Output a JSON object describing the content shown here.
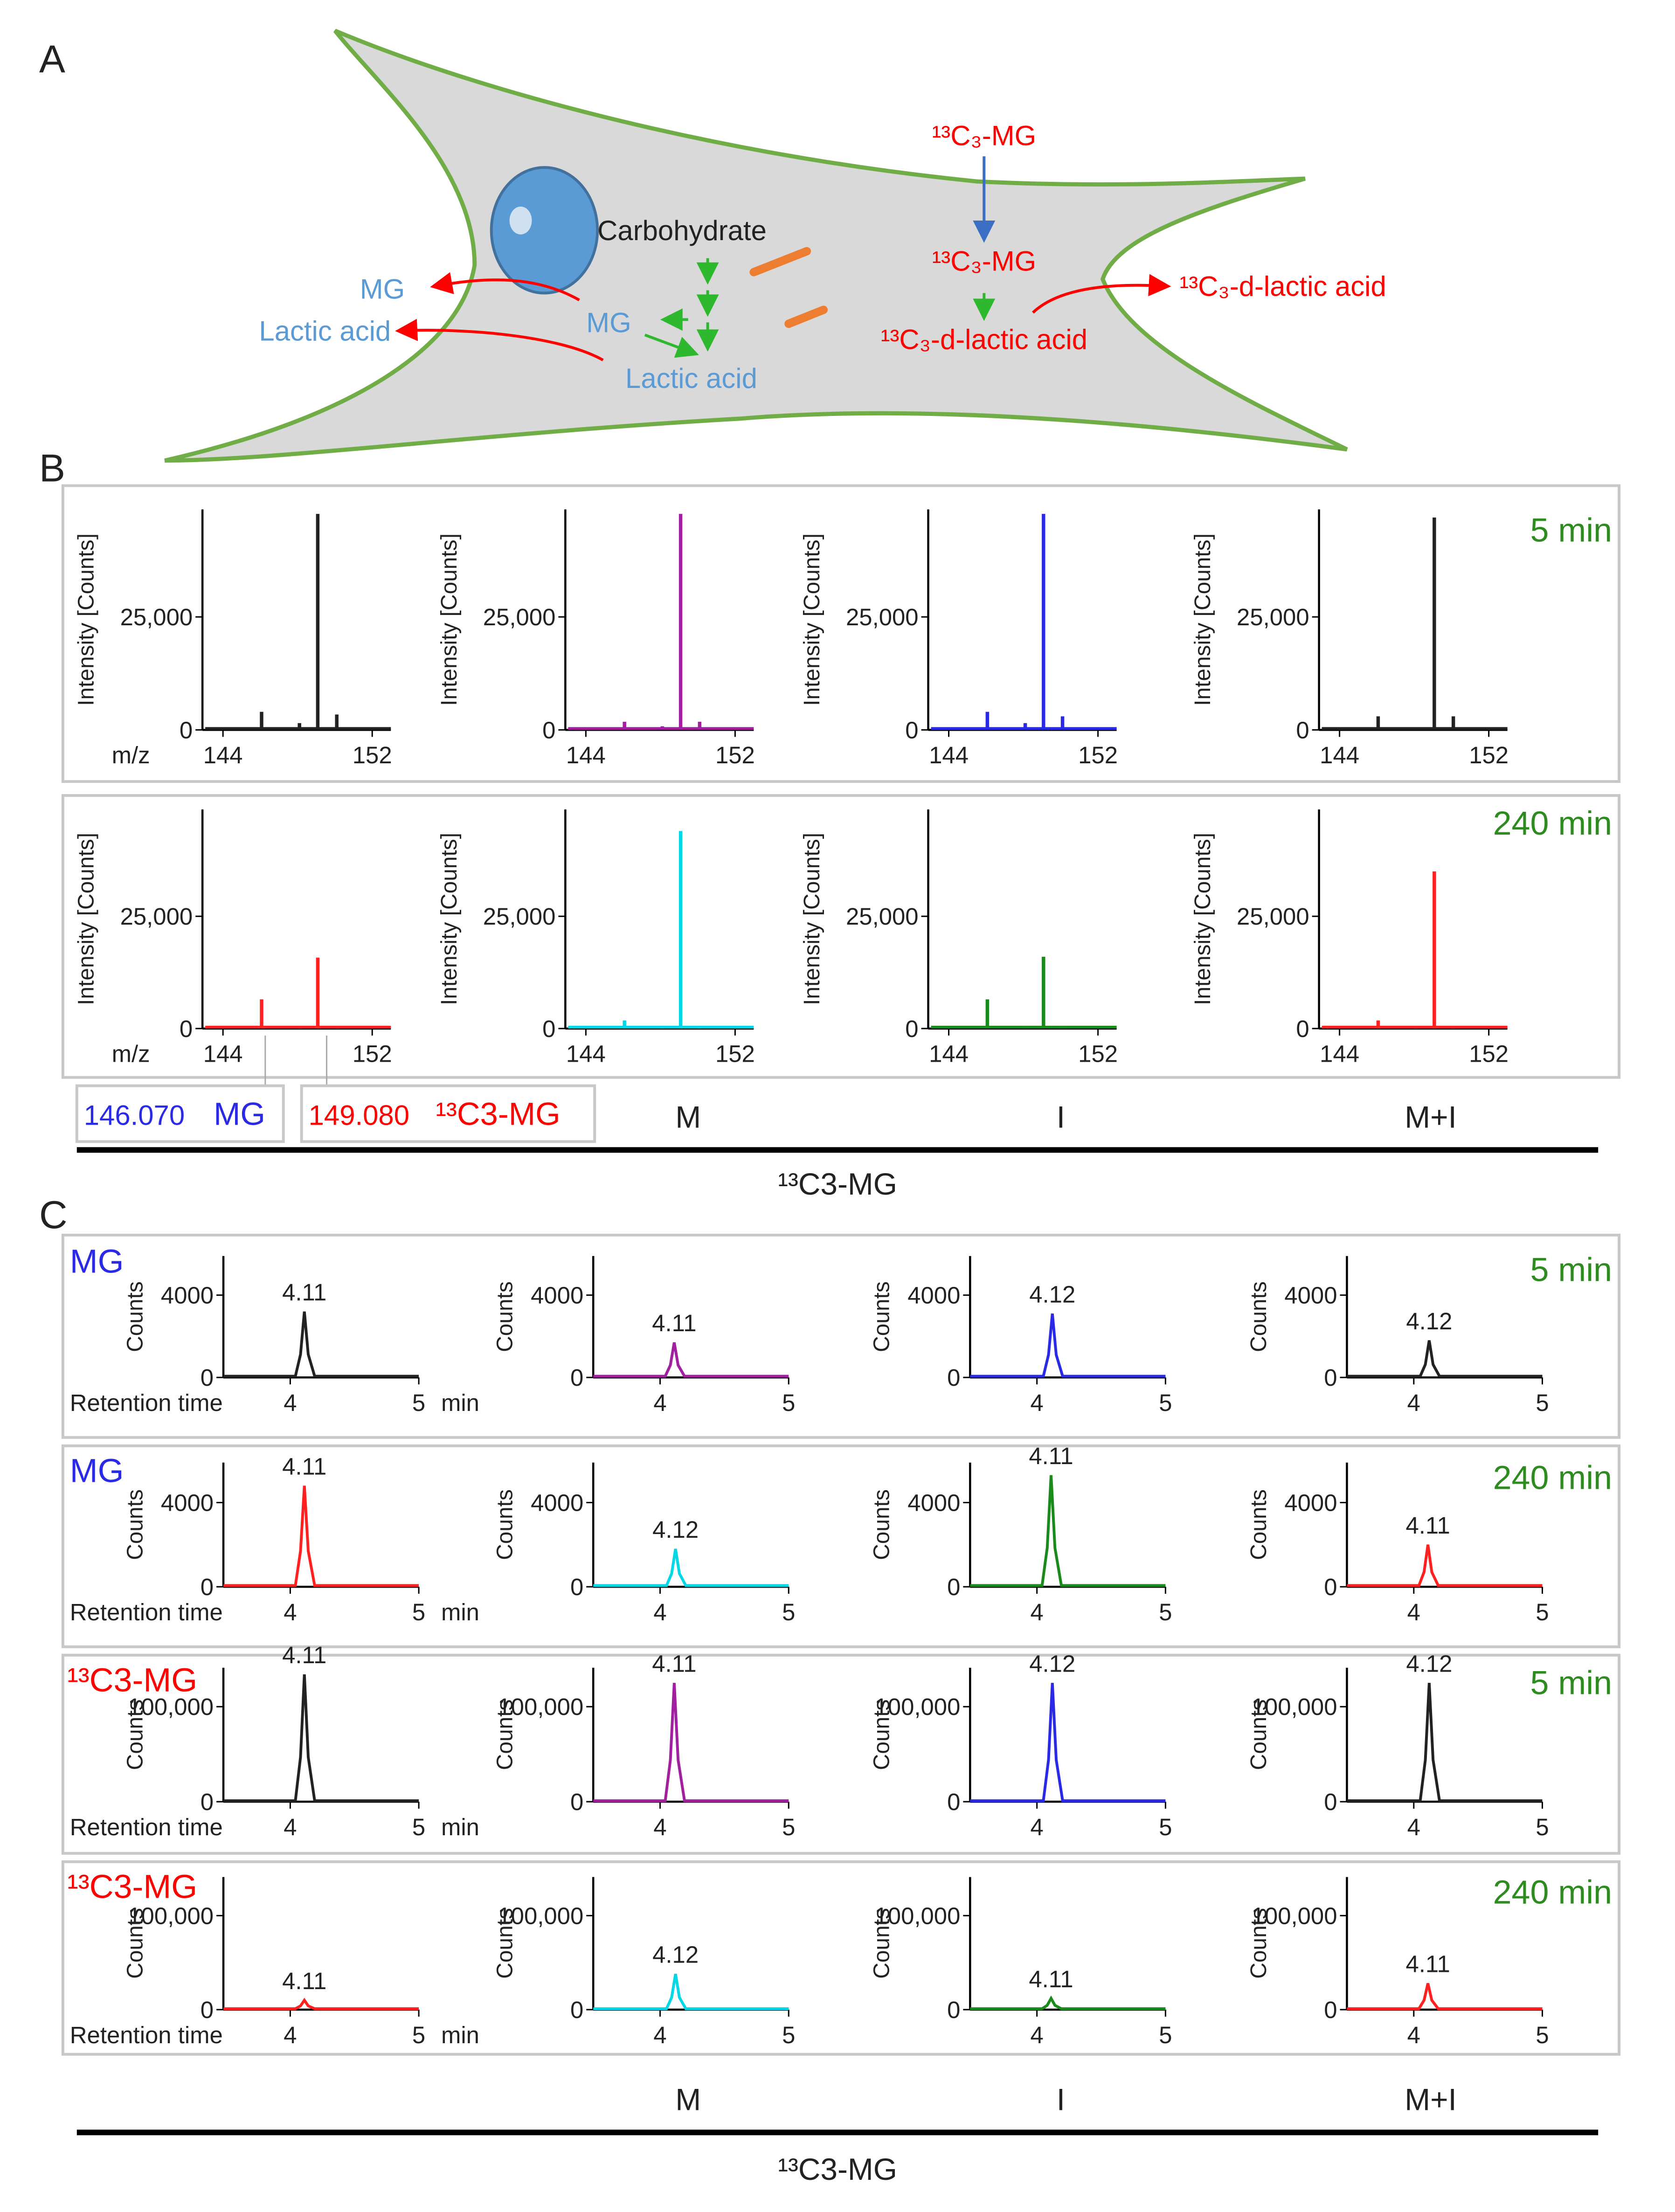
{
  "panel_labels": [
    "A",
    "B",
    "C"
  ],
  "diagram": {
    "labels": [
      "Carbohydrate",
      "MG",
      "Lactic acid",
      "MG",
      "Lactic acid",
      "¹³C₃-MG",
      "¹³C₃-MG",
      "¹³C₃-d-lactic acid",
      "¹³C₃-d-lactic acid"
    ]
  },
  "panel_b": {
    "rows": [
      "5 min",
      "240 min"
    ],
    "legend": [
      {
        "mz": "146.070",
        "name": "MG"
      },
      {
        "mz": "149.080",
        "name": "¹³C3-MG"
      }
    ],
    "columns": [
      "M",
      "I",
      "M+I"
    ],
    "group": "¹³C3-MG"
  },
  "panel_c": {
    "rows": [
      {
        "label": "MG",
        "time": "5 min"
      },
      {
        "label": "MG",
        "time": "240 min"
      },
      {
        "label": "¹³C3-MG",
        "time": "5 min"
      },
      {
        "label": "¹³C3-MG",
        "time": "240 min"
      }
    ],
    "columns": [
      "M",
      "I",
      "M+I"
    ],
    "group": "¹³C3-MG"
  },
  "chart_data": [
    {
      "type": "stem",
      "color": "#222222",
      "y_label": "Intensity [Counts]",
      "x_label": "m/z",
      "x": [
        146.07,
        148.1,
        149.08,
        150.1
      ],
      "values": [
        4000,
        1500,
        47800,
        3400
      ],
      "xlim": [
        142.9,
        153
      ],
      "ylim": [
        0,
        48800
      ],
      "xticks": [
        144,
        152
      ],
      "yticks": [
        0,
        {
          "value": 25000,
          "label": "25,000"
        }
      ]
    },
    {
      "type": "stem",
      "color": "#a020a0",
      "y_label": "Intensity [Counts]",
      "x": [
        146.07,
        148.1,
        149.08,
        150.1
      ],
      "values": [
        1800,
        800,
        47800,
        1800
      ],
      "xlim": [
        142.9,
        153
      ],
      "ylim": [
        0,
        48800
      ],
      "xticks": [
        144,
        152
      ],
      "yticks": [
        0,
        {
          "value": 25000,
          "label": "25,000"
        }
      ]
    },
    {
      "type": "stem",
      "color": "#2a2ae6",
      "y_label": "Intensity [Counts]",
      "x": [
        146.07,
        148.1,
        149.08,
        150.1
      ],
      "values": [
        4000,
        1500,
        47800,
        3000
      ],
      "xlim": [
        142.9,
        153
      ],
      "ylim": [
        0,
        48800
      ],
      "xticks": [
        144,
        152
      ],
      "yticks": [
        0,
        {
          "value": 25000,
          "label": "25,000"
        }
      ]
    },
    {
      "type": "stem",
      "color": "#222222",
      "y_label": "Intensity [Counts]",
      "x": [
        146.07,
        148.1,
        149.08,
        150.1
      ],
      "values": [
        3000,
        600,
        47000,
        3000
      ],
      "xlim": [
        142.9,
        153
      ],
      "ylim": [
        0,
        48800
      ],
      "xticks": [
        144,
        152
      ],
      "yticks": [
        0,
        {
          "value": 25000,
          "label": "25,000"
        }
      ]
    },
    {
      "type": "stem",
      "color": "#ff2020",
      "y_label": "Intensity [Counts]",
      "x_label": "m/z",
      "x": [
        146.07,
        148.1,
        149.08,
        150.1
      ],
      "values": [
        6500,
        300,
        15800,
        400
      ],
      "xlim": [
        142.9,
        153
      ],
      "ylim": [
        0,
        48800
      ],
      "xticks": [
        144,
        152
      ],
      "yticks": [
        0,
        {
          "value": 25000,
          "label": "25,000"
        }
      ]
    },
    {
      "type": "stem",
      "color": "#00d8e6",
      "y_label": "Intensity [Counts]",
      "x": [
        146.07,
        148.1,
        149.08,
        150.1
      ],
      "values": [
        1800,
        300,
        44000,
        300
      ],
      "xlim": [
        142.9,
        153
      ],
      "ylim": [
        0,
        48800
      ],
      "xticks": [
        144,
        152
      ],
      "yticks": [
        0,
        {
          "value": 25000,
          "label": "25,000"
        }
      ]
    },
    {
      "type": "stem",
      "color": "#1a8a1a",
      "y_label": "Intensity [Counts]",
      "x": [
        146.07,
        148.1,
        149.08,
        150.1
      ],
      "values": [
        6500,
        300,
        16000,
        300
      ],
      "xlim": [
        142.9,
        153
      ],
      "ylim": [
        0,
        48800
      ],
      "xticks": [
        144,
        152
      ],
      "yticks": [
        0,
        {
          "value": 25000,
          "label": "25,000"
        }
      ]
    },
    {
      "type": "stem",
      "color": "#ff2020",
      "y_label": "Intensity [Counts]",
      "x": [
        146.07,
        148.1,
        149.08,
        150.1
      ],
      "values": [
        1800,
        300,
        35000,
        300
      ],
      "xlim": [
        142.9,
        153
      ],
      "ylim": [
        0,
        48800
      ],
      "xticks": [
        144,
        152
      ],
      "yticks": [
        0,
        {
          "value": 25000,
          "label": "25,000"
        }
      ]
    },
    {
      "type": "line",
      "color": "#222222",
      "y_label": "Counts",
      "x_label": "Retention time",
      "x_unit": "min",
      "x": [
        3.48,
        4.04,
        4.08,
        4.11,
        4.14,
        4.19,
        5.0
      ],
      "values": [
        60,
        60,
        1120,
        3200,
        1120,
        60,
        60
      ],
      "xlim": [
        3.48,
        5
      ],
      "ylim": [
        0,
        5900
      ],
      "xticks": [
        4,
        5
      ],
      "yticks": [
        0,
        4000
      ],
      "annotations": [
        {
          "text": "4.11",
          "x": 4.11,
          "y": 3200
        }
      ]
    },
    {
      "type": "line",
      "color": "#a020a0",
      "y_label": "Counts",
      "x": [
        3.48,
        4.04,
        4.08,
        4.11,
        4.14,
        4.19,
        5.0
      ],
      "values": [
        60,
        60,
        600,
        1700,
        600,
        60,
        60
      ],
      "xlim": [
        3.48,
        5
      ],
      "ylim": [
        0,
        5900
      ],
      "xticks": [
        4,
        5
      ],
      "yticks": [
        0,
        4000
      ],
      "annotations": [
        {
          "text": "4.11",
          "x": 4.11,
          "y": 1700
        }
      ]
    },
    {
      "type": "line",
      "color": "#2a2ae6",
      "y_label": "Counts",
      "x": [
        3.48,
        4.05,
        4.09,
        4.12,
        4.15,
        4.2,
        5.0
      ],
      "values": [
        60,
        60,
        1100,
        3100,
        1100,
        60,
        60
      ],
      "xlim": [
        3.48,
        5
      ],
      "ylim": [
        0,
        5900
      ],
      "xticks": [
        4,
        5
      ],
      "yticks": [
        0,
        4000
      ],
      "annotations": [
        {
          "text": "4.12",
          "x": 4.12,
          "y": 3100
        }
      ]
    },
    {
      "type": "line",
      "color": "#222222",
      "y_label": "Counts",
      "x": [
        3.48,
        4.05,
        4.09,
        4.12,
        4.15,
        4.2,
        5.0
      ],
      "values": [
        60,
        60,
        630,
        1800,
        630,
        60,
        60
      ],
      "xlim": [
        3.48,
        5
      ],
      "ylim": [
        0,
        5900
      ],
      "xticks": [
        4,
        5
      ],
      "yticks": [
        0,
        4000
      ],
      "annotations": [
        {
          "text": "4.12",
          "x": 4.12,
          "y": 1800
        }
      ]
    },
    {
      "type": "line",
      "color": "#ff2020",
      "y_label": "Counts",
      "x_label": "Retention time",
      "x_unit": "min",
      "x": [
        3.48,
        4.04,
        4.08,
        4.11,
        4.14,
        4.19,
        5.0
      ],
      "values": [
        60,
        60,
        1700,
        4800,
        1700,
        60,
        60
      ],
      "xlim": [
        3.48,
        5
      ],
      "ylim": [
        0,
        5900
      ],
      "xticks": [
        4,
        5
      ],
      "yticks": [
        0,
        4000
      ],
      "annotations": [
        {
          "text": "4.11",
          "x": 4.11,
          "y": 4800
        }
      ]
    },
    {
      "type": "line",
      "color": "#00d8e6",
      "y_label": "Counts",
      "x": [
        3.48,
        4.05,
        4.09,
        4.12,
        4.15,
        4.2,
        5.0
      ],
      "values": [
        60,
        60,
        630,
        1800,
        630,
        60,
        60
      ],
      "xlim": [
        3.48,
        5
      ],
      "ylim": [
        0,
        5900
      ],
      "xticks": [
        4,
        5
      ],
      "yticks": [
        0,
        4000
      ],
      "annotations": [
        {
          "text": "4.12",
          "x": 4.12,
          "y": 1800
        }
      ]
    },
    {
      "type": "line",
      "color": "#1a8a1a",
      "y_label": "Counts",
      "x": [
        3.48,
        4.04,
        4.08,
        4.11,
        4.14,
        4.19,
        5.0
      ],
      "values": [
        60,
        60,
        1850,
        5300,
        1850,
        60,
        60
      ],
      "xlim": [
        3.48,
        5
      ],
      "ylim": [
        0,
        5900
      ],
      "xticks": [
        4,
        5
      ],
      "yticks": [
        0,
        4000
      ],
      "annotations": [
        {
          "text": "4.11",
          "x": 4.11,
          "y": 5300
        }
      ]
    },
    {
      "type": "line",
      "color": "#ff2020",
      "y_label": "Counts",
      "x": [
        3.48,
        4.04,
        4.08,
        4.11,
        4.14,
        4.19,
        5.0
      ],
      "values": [
        60,
        60,
        700,
        2000,
        700,
        60,
        60
      ],
      "xlim": [
        3.48,
        5
      ],
      "ylim": [
        0,
        5900
      ],
      "xticks": [
        4,
        5
      ],
      "yticks": [
        0,
        4000
      ],
      "annotations": [
        {
          "text": "4.11",
          "x": 4.11,
          "y": 2000
        }
      ]
    },
    {
      "type": "line",
      "color": "#222222",
      "y_label": "Counts",
      "x_label": "Retention time",
      "x_unit": "min",
      "x": [
        3.48,
        4.04,
        4.08,
        4.11,
        4.14,
        4.19,
        5.0
      ],
      "values": [
        1000,
        1000,
        47000,
        134000,
        47000,
        1000,
        1000
      ],
      "xlim": [
        3.48,
        5
      ],
      "ylim": [
        0,
        141000
      ],
      "xticks": [
        4,
        5
      ],
      "yticks": [
        0,
        {
          "value": 100000,
          "label": "100,000"
        }
      ],
      "annotations": [
        {
          "text": "4.11",
          "x": 4.11,
          "y": 134000
        }
      ]
    },
    {
      "type": "line",
      "color": "#a020a0",
      "y_label": "Counts",
      "x": [
        3.48,
        4.04,
        4.08,
        4.11,
        4.14,
        4.19,
        5.0
      ],
      "values": [
        1000,
        1000,
        44000,
        125000,
        44000,
        1000,
        1000
      ],
      "xlim": [
        3.48,
        5
      ],
      "ylim": [
        0,
        141000
      ],
      "xticks": [
        4,
        5
      ],
      "yticks": [
        0,
        {
          "value": 100000,
          "label": "100,000"
        }
      ],
      "annotations": [
        {
          "text": "4.11",
          "x": 4.11,
          "y": 125000
        }
      ]
    },
    {
      "type": "line",
      "color": "#2a2ae6",
      "y_label": "Counts",
      "x": [
        3.48,
        4.05,
        4.09,
        4.12,
        4.15,
        4.2,
        5.0
      ],
      "values": [
        1000,
        1000,
        44000,
        125000,
        44000,
        1000,
        1000
      ],
      "xlim": [
        3.48,
        5
      ],
      "ylim": [
        0,
        141000
      ],
      "xticks": [
        4,
        5
      ],
      "yticks": [
        0,
        {
          "value": 100000,
          "label": "100,000"
        }
      ],
      "annotations": [
        {
          "text": "4.12",
          "x": 4.12,
          "y": 125000
        }
      ]
    },
    {
      "type": "line",
      "color": "#222222",
      "y_label": "Counts",
      "x": [
        3.48,
        4.05,
        4.09,
        4.12,
        4.15,
        4.2,
        5.0
      ],
      "values": [
        1000,
        1000,
        44000,
        125000,
        44000,
        1000,
        1000
      ],
      "xlim": [
        3.48,
        5
      ],
      "ylim": [
        0,
        141000
      ],
      "xticks": [
        4,
        5
      ],
      "yticks": [
        0,
        {
          "value": 100000,
          "label": "100,000"
        }
      ],
      "annotations": [
        {
          "text": "4.12",
          "x": 4.12,
          "y": 125000
        }
      ]
    },
    {
      "type": "line",
      "color": "#ff2020",
      "y_label": "Counts",
      "x_label": "Retention time",
      "x_unit": "min",
      "x": [
        3.48,
        4.04,
        4.08,
        4.11,
        4.14,
        4.19,
        5.0
      ],
      "values": [
        1000,
        1000,
        4000,
        10000,
        4000,
        1000,
        1000
      ],
      "xlim": [
        3.48,
        5
      ],
      "ylim": [
        0,
        141000
      ],
      "xticks": [
        4,
        5
      ],
      "yticks": [
        0,
        {
          "value": 100000,
          "label": "100,000"
        }
      ],
      "annotations": [
        {
          "text": "4.11",
          "x": 4.11,
          "y": 10000
        }
      ]
    },
    {
      "type": "line",
      "color": "#00d8e6",
      "y_label": "Counts",
      "x": [
        3.48,
        4.05,
        4.09,
        4.12,
        4.15,
        4.2,
        5.0
      ],
      "values": [
        1000,
        1000,
        13000,
        38000,
        13000,
        1000,
        1000
      ],
      "xlim": [
        3.48,
        5
      ],
      "ylim": [
        0,
        141000
      ],
      "xticks": [
        4,
        5
      ],
      "yticks": [
        0,
        {
          "value": 100000,
          "label": "100,000"
        }
      ],
      "annotations": [
        {
          "text": "4.12",
          "x": 4.12,
          "y": 38000
        }
      ]
    },
    {
      "type": "line",
      "color": "#1a8a1a",
      "y_label": "Counts",
      "x": [
        3.48,
        4.04,
        4.08,
        4.11,
        4.14,
        4.19,
        5.0
      ],
      "values": [
        1000,
        1000,
        4600,
        12000,
        4600,
        1000,
        1000
      ],
      "xlim": [
        3.48,
        5
      ],
      "ylim": [
        0,
        141000
      ],
      "xticks": [
        4,
        5
      ],
      "yticks": [
        0,
        {
          "value": 100000,
          "label": "100,000"
        }
      ],
      "annotations": [
        {
          "text": "4.11",
          "x": 4.11,
          "y": 12000
        }
      ]
    },
    {
      "type": "line",
      "color": "#ff2020",
      "y_label": "Counts",
      "x": [
        3.48,
        4.04,
        4.08,
        4.11,
        4.14,
        4.19,
        5.0
      ],
      "values": [
        1000,
        1000,
        10000,
        28000,
        10000,
        1000,
        1000
      ],
      "xlim": [
        3.48,
        5
      ],
      "ylim": [
        0,
        141000
      ],
      "xticks": [
        4,
        5
      ],
      "yticks": [
        0,
        {
          "value": 100000,
          "label": "100,000"
        }
      ],
      "annotations": [
        {
          "text": "4.11",
          "x": 4.11,
          "y": 28000
        }
      ]
    }
  ]
}
